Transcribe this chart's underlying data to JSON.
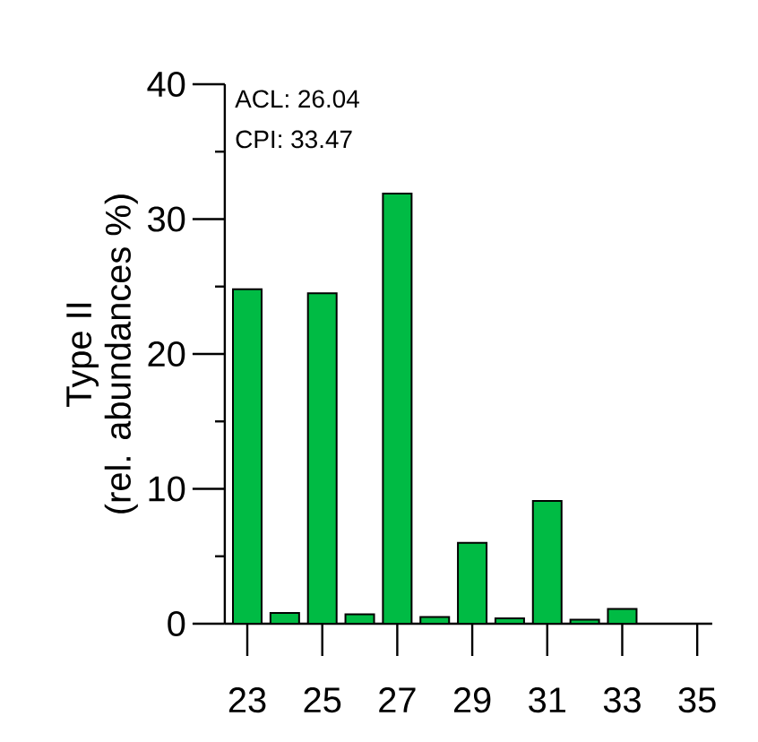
{
  "chart_data": {
    "type": "bar",
    "ylabel": "Type II\n(rel. abundances %)",
    "categories": [
      "23",
      null,
      "25",
      null,
      "27",
      null,
      "29",
      null,
      "31",
      null,
      "33",
      null,
      "35"
    ],
    "values": [
      24.8,
      0.8,
      24.5,
      0.7,
      31.9,
      0.5,
      6.0,
      0.4,
      9.1,
      0.3,
      1.1,
      null,
      null
    ],
    "color": "#00bb44",
    "ylim": [
      0,
      40
    ],
    "yticks": [
      0,
      {
        "value": 5,
        "label": null
      },
      10,
      {
        "value": 15,
        "label": null
      },
      20,
      {
        "value": 25,
        "label": null
      },
      30,
      {
        "value": 35,
        "label": null
      },
      40
    ],
    "annotations": [
      "ACL: 26.04",
      "CPI: 33.47"
    ],
    "grid": false
  }
}
